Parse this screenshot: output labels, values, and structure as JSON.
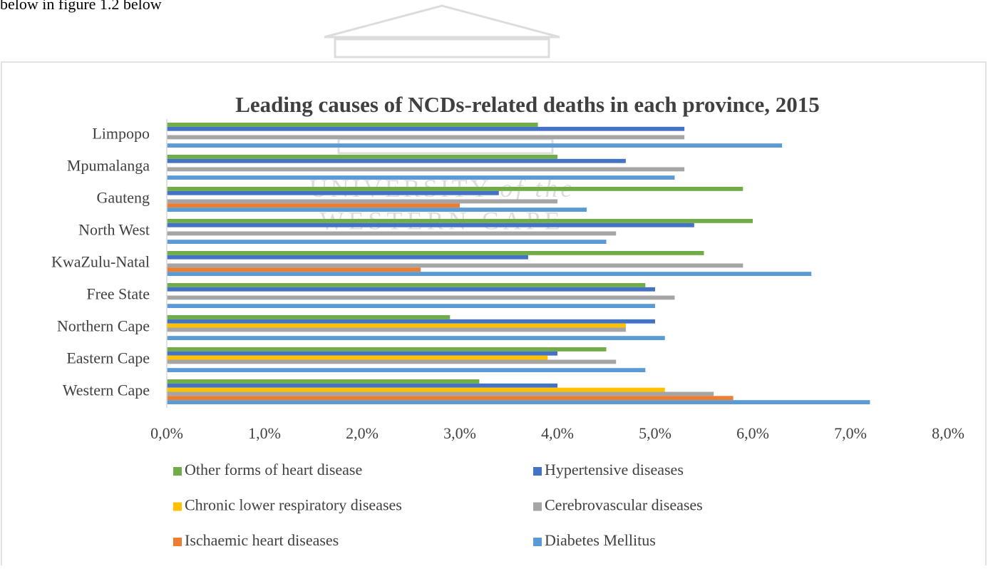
{
  "page_text": "below in figure 1.2 below",
  "watermark": {
    "line1": "UNIVERSITY",
    "line1b": "of the",
    "line2": "WESTERN CAPE"
  },
  "chart_data": {
    "type": "hbar",
    "title": "Leading causes of NCDs-related deaths in each province, 2015",
    "categories": [
      "Limpopo",
      "Mpumalanga",
      "Gauteng",
      "North West",
      "KwaZulu-Natal",
      "Free State",
      "Northern Cape",
      "Eastern Cape",
      "Western Cape"
    ],
    "series": [
      {
        "name": "Other forms of heart disease",
        "color": "#70ad47",
        "values": [
          3.8,
          4.0,
          5.9,
          6.0,
          5.5,
          4.9,
          2.9,
          4.5,
          3.2
        ]
      },
      {
        "name": "Hypertensive diseases",
        "color": "#4472c4",
        "values": [
          5.3,
          4.7,
          3.4,
          5.4,
          3.7,
          5.0,
          5.0,
          4.0,
          4.0
        ]
      },
      {
        "name": "Chronic lower respiratory diseases",
        "color": "#ffc000",
        "values": [
          null,
          null,
          null,
          null,
          null,
          null,
          4.7,
          3.9,
          5.1
        ]
      },
      {
        "name": "Cerebrovascular diseases",
        "color": "#a5a5a5",
        "values": [
          5.3,
          5.3,
          4.0,
          4.6,
          5.9,
          5.2,
          4.7,
          4.6,
          5.6
        ]
      },
      {
        "name": "Ischaemic heart diseases",
        "color": "#ed7d31",
        "values": [
          null,
          null,
          3.0,
          null,
          2.6,
          null,
          null,
          null,
          5.8
        ]
      },
      {
        "name": "Diabetes Mellitus",
        "color": "#5b9bd5",
        "values": [
          6.3,
          5.2,
          4.3,
          4.5,
          6.6,
          5.0,
          5.1,
          4.9,
          7.2
        ]
      }
    ],
    "xlim": [
      0,
      8
    ],
    "xticks": [
      {
        "value": 0,
        "label": "0,0%"
      },
      {
        "value": 1,
        "label": "1,0%"
      },
      {
        "value": 2,
        "label": "2,0%"
      },
      {
        "value": 3,
        "label": "3,0%"
      },
      {
        "value": 4,
        "label": "4,0%"
      },
      {
        "value": 5,
        "label": "5,0%"
      },
      {
        "value": 6,
        "label": "6,0%"
      },
      {
        "value": 7,
        "label": "7,0%"
      },
      {
        "value": 8,
        "label": "8,0%"
      }
    ],
    "grid": false,
    "legend": "bottom"
  }
}
